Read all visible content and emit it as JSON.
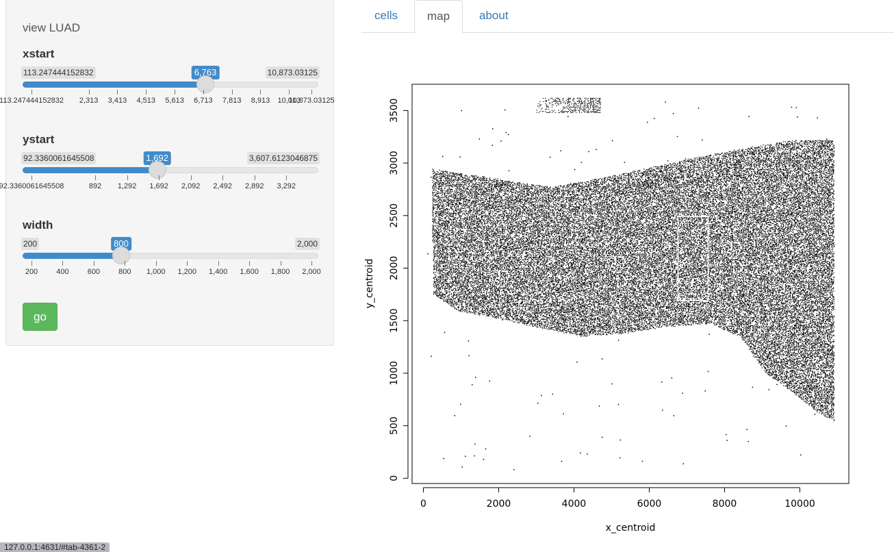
{
  "sidebar": {
    "title": "view LUAD",
    "sliders": [
      {
        "label": "xstart",
        "min_label": "113.247444152832",
        "max_label": "10,873.03125",
        "value_label": "6,763",
        "value": 6763,
        "min": 113.247444152832,
        "max": 10873.03125,
        "ticks": [
          "113.247444152832",
          "2,313",
          "3,413",
          "4,513",
          "5,613",
          "6,713",
          "7,813",
          "8,913",
          "10,013",
          "10,873.03125"
        ]
      },
      {
        "label": "ystart",
        "min_label": "92.3360061645508",
        "max_label": "3,607.6123046875",
        "value_label": "1,692",
        "value": 1692,
        "min": 92.3360061645508,
        "max": 3607.6123046875,
        "ticks": [
          "92.3360061645508",
          "892",
          "1,292",
          "1,692",
          "2,092",
          "2,492",
          "2,892",
          "3,292"
        ]
      },
      {
        "label": "width",
        "min_label": "200",
        "max_label": "2,000",
        "value_label": "800",
        "value": 800,
        "min": 200,
        "max": 2000,
        "ticks": [
          "200",
          "400",
          "600",
          "800",
          "1,000",
          "1,200",
          "1,400",
          "1,600",
          "1,800",
          "2,000"
        ]
      }
    ],
    "go_label": "go"
  },
  "tabs": [
    {
      "label": "cells",
      "active": false
    },
    {
      "label": "map",
      "active": true
    },
    {
      "label": "about",
      "active": false
    }
  ],
  "status_url": "127.0.0.1:4631/#tab-4361-2",
  "chart_data": {
    "type": "scatter",
    "title": "",
    "xlabel": "x_centroid",
    "ylabel": "y_centroid",
    "xlim": [
      -300,
      11300
    ],
    "ylim": [
      -50,
      3750
    ],
    "xticks": [
      0,
      2000,
      4000,
      6000,
      8000,
      10000
    ],
    "yticks": [
      0,
      500,
      1000,
      1500,
      2000,
      2500,
      3000,
      3500
    ],
    "x_tick_labels": [
      "0",
      "2000",
      "4000",
      "6000",
      "8000",
      "10000"
    ],
    "y_tick_labels": [
      "0",
      "500",
      "1000",
      "1500",
      "2000",
      "2500",
      "3000",
      "3500"
    ],
    "grid": false,
    "point_color": "#000000",
    "highlight_box": {
      "x": [
        6763,
        7563
      ],
      "y": [
        1692,
        2492
      ],
      "color": "#ffffff"
    },
    "tissue_outline": [
      [
        200,
        2950
      ],
      [
        3400,
        2780
      ],
      [
        5200,
        2900
      ],
      [
        7500,
        3080
      ],
      [
        9800,
        3230
      ],
      [
        10900,
        3220
      ],
      [
        10900,
        550
      ],
      [
        10400,
        650
      ],
      [
        9700,
        850
      ],
      [
        9100,
        1000
      ],
      [
        8400,
        1350
      ],
      [
        7600,
        1480
      ],
      [
        6400,
        1450
      ],
      [
        5200,
        1380
      ],
      [
        4200,
        1360
      ],
      [
        3200,
        1430
      ],
      [
        2200,
        1510
      ],
      [
        900,
        1600
      ],
      [
        250,
        1760
      ]
    ],
    "extra_clusters": [
      {
        "x": [
          3000,
          4700
        ],
        "y": [
          3480,
          3620
        ]
      }
    ]
  }
}
